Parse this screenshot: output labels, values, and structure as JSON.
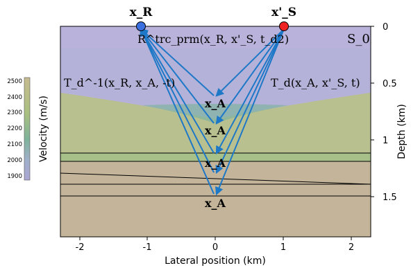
{
  "labels": {
    "receiver": "x_R",
    "source": "x'_S",
    "surface": "S_0",
    "top_operator": "R^trc_prm(x_R, x'_S, t_d2)",
    "left_operator": "T_d^-1(x_R, x_A, -t)",
    "right_operator": "T_d(x_A, x'_S, t)",
    "focal_point": "x_A",
    "xlabel": "Lateral position (km)",
    "ylabel_right": "Depth (km)",
    "colorbar_label": "Velocity (m/s)"
  },
  "x_ticks": [
    "-2",
    "-1",
    "0",
    "1",
    "2"
  ],
  "depth_ticks": [
    "0",
    "0.5",
    "1",
    "1.5"
  ],
  "colorbar_ticks": [
    "2500",
    "2400",
    "2300",
    "2200",
    "2100",
    "2000",
    "1900"
  ],
  "colors": {
    "receiver": "#3a6fe0",
    "source": "#ee2222",
    "ray": "#1e78c8",
    "layer_top": "#b4b2d8",
    "layer_mid": "#b9c090",
    "layer_low": "#c4b59a"
  }
}
